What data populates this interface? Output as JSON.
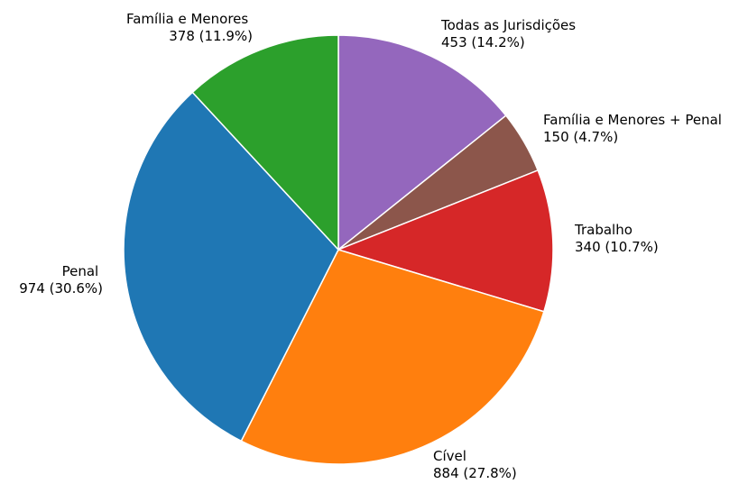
{
  "chart_data": {
    "type": "pie",
    "title": "",
    "start_angle_deg": 90,
    "direction": "clockwise",
    "slices": [
      {
        "label": "Todas as Jurisdições",
        "value": 453,
        "value_text": "453 (14.2%)",
        "color": "#9467bd"
      },
      {
        "label": "Família e Menores + Penal",
        "value": 150,
        "value_text": "150 (4.7%)",
        "color": "#8c564b"
      },
      {
        "label": "Trabalho",
        "value": 340,
        "value_text": "340 (10.7%)",
        "color": "#d62728"
      },
      {
        "label": "Cível",
        "value": 884,
        "value_text": "884 (27.8%)",
        "color": "#ff7f0e"
      },
      {
        "label": "Penal",
        "value": 974,
        "value_text": "974 (30.6%)",
        "color": "#1f77b4"
      },
      {
        "label": "Família e Menores",
        "value": 378,
        "value_text": "378 (11.9%)",
        "color": "#2ca02c"
      }
    ]
  }
}
